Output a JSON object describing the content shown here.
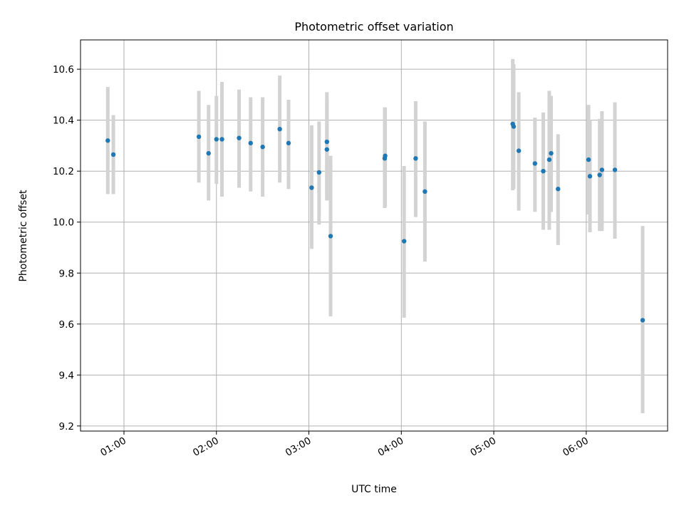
{
  "chart_data": {
    "type": "scatter",
    "title": "Photometric offset variation",
    "xlabel": "UTC time",
    "ylabel": "Photometric offset",
    "x_ticks": [
      "01:00",
      "02:00",
      "03:00",
      "04:00",
      "05:00",
      "06:00"
    ],
    "x_tick_hours": [
      1,
      2,
      3,
      4,
      5,
      6
    ],
    "y_ticks": [
      "9.2",
      "9.4",
      "9.6",
      "9.8",
      "10.0",
      "10.2",
      "10.4",
      "10.6"
    ],
    "y_tick_values": [
      9.2,
      9.4,
      9.6,
      9.8,
      10.0,
      10.2,
      10.4,
      10.6
    ],
    "xlim_hours": [
      0.53,
      6.88
    ],
    "ylim": [
      9.18,
      10.715
    ],
    "grid": true,
    "marker_color": "#1f77b4",
    "errorbar_color": "#d3d3d3",
    "points": [
      {
        "x": 0.825,
        "y": 10.32,
        "lo": 10.11,
        "hi": 10.53
      },
      {
        "x": 0.885,
        "y": 10.265,
        "lo": 10.11,
        "hi": 10.42
      },
      {
        "x": 1.81,
        "y": 10.335,
        "lo": 10.155,
        "hi": 10.515
      },
      {
        "x": 1.915,
        "y": 10.27,
        "lo": 10.085,
        "hi": 10.46
      },
      {
        "x": 2.0,
        "y": 10.325,
        "lo": 10.15,
        "hi": 10.495
      },
      {
        "x": 2.06,
        "y": 10.325,
        "lo": 10.1,
        "hi": 10.55
      },
      {
        "x": 2.245,
        "y": 10.33,
        "lo": 10.135,
        "hi": 10.52
      },
      {
        "x": 2.37,
        "y": 10.31,
        "lo": 10.12,
        "hi": 10.49
      },
      {
        "x": 2.5,
        "y": 10.295,
        "lo": 10.1,
        "hi": 10.49
      },
      {
        "x": 2.685,
        "y": 10.365,
        "lo": 10.155,
        "hi": 10.575
      },
      {
        "x": 2.78,
        "y": 10.31,
        "lo": 10.13,
        "hi": 10.48
      },
      {
        "x": 3.03,
        "y": 10.135,
        "lo": 9.895,
        "hi": 10.38
      },
      {
        "x": 3.11,
        "y": 10.195,
        "lo": 9.99,
        "hi": 10.395
      },
      {
        "x": 3.195,
        "y": 10.315,
        "lo": 10.085,
        "hi": 10.51
      },
      {
        "x": 3.195,
        "y": 10.285,
        "lo": 10.09,
        "hi": 10.48
      },
      {
        "x": 3.235,
        "y": 9.945,
        "lo": 9.63,
        "hi": 10.26
      },
      {
        "x": 3.82,
        "y": 10.25,
        "lo": 10.055,
        "hi": 10.45
      },
      {
        "x": 3.825,
        "y": 10.26,
        "lo": 10.06,
        "hi": 10.45
      },
      {
        "x": 4.03,
        "y": 9.925,
        "lo": 9.625,
        "hi": 10.22
      },
      {
        "x": 4.155,
        "y": 10.25,
        "lo": 10.02,
        "hi": 10.475
      },
      {
        "x": 4.255,
        "y": 10.12,
        "lo": 9.845,
        "hi": 10.395
      },
      {
        "x": 5.205,
        "y": 10.385,
        "lo": 10.125,
        "hi": 10.64
      },
      {
        "x": 5.215,
        "y": 10.375,
        "lo": 10.13,
        "hi": 10.62
      },
      {
        "x": 5.27,
        "y": 10.28,
        "lo": 10.045,
        "hi": 10.51
      },
      {
        "x": 5.445,
        "y": 10.23,
        "lo": 10.04,
        "hi": 10.41
      },
      {
        "x": 5.535,
        "y": 10.2,
        "lo": 9.97,
        "hi": 10.43
      },
      {
        "x": 5.6,
        "y": 10.245,
        "lo": 9.97,
        "hi": 10.515
      },
      {
        "x": 5.62,
        "y": 10.27,
        "lo": 10.04,
        "hi": 10.495
      },
      {
        "x": 5.695,
        "y": 10.13,
        "lo": 9.91,
        "hi": 10.345
      },
      {
        "x": 6.025,
        "y": 10.245,
        "lo": 10.03,
        "hi": 10.46
      },
      {
        "x": 6.04,
        "y": 10.18,
        "lo": 9.96,
        "hi": 10.4
      },
      {
        "x": 6.145,
        "y": 10.185,
        "lo": 9.965,
        "hi": 10.405
      },
      {
        "x": 6.17,
        "y": 10.205,
        "lo": 9.965,
        "hi": 10.435
      },
      {
        "x": 6.31,
        "y": 10.205,
        "lo": 9.935,
        "hi": 10.47
      },
      {
        "x": 6.61,
        "y": 9.615,
        "lo": 9.25,
        "hi": 9.985
      }
    ]
  }
}
